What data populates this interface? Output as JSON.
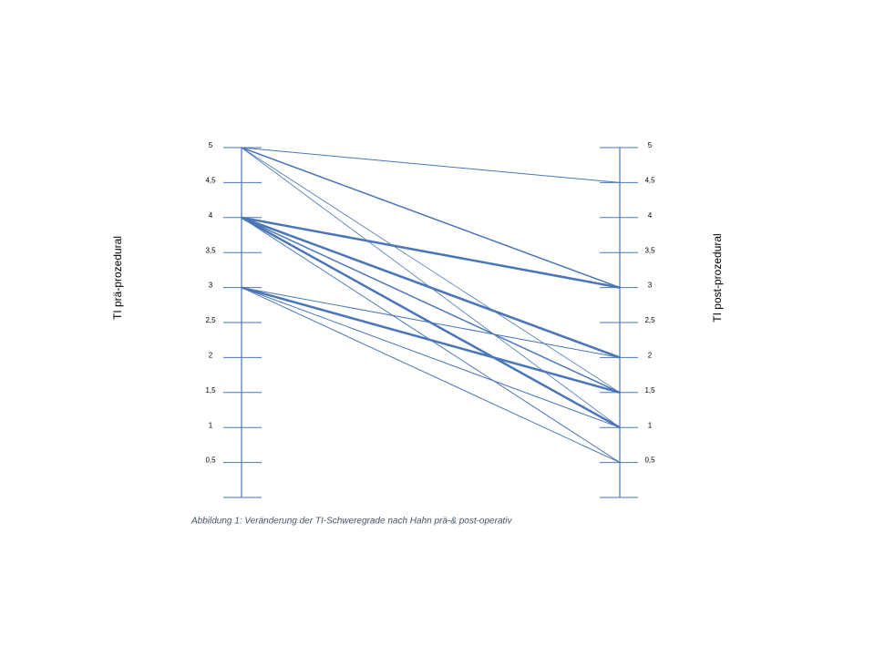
{
  "chart_data": {
    "type": "slope",
    "caption": "Abbildung 1: Veränderung der TI-Schweregrade nach Hahn prä-& post-operativ",
    "left_label": "TI prä-prozedural",
    "right_label": "TI post-prozedural",
    "color": "#4a76b8",
    "ylim": [
      0,
      5
    ],
    "yticks": [
      {
        "value": 0.5,
        "label": "0,5"
      },
      1,
      {
        "value": 1.5,
        "label": "1,5"
      },
      2,
      {
        "value": 2.5,
        "label": "2,5"
      },
      3,
      {
        "value": 3.5,
        "label": "3,5"
      },
      4,
      {
        "value": 4.5,
        "label": "4,5"
      },
      5
    ],
    "series": [
      {
        "values": [
          5,
          4.5
        ],
        "width": 1
      },
      {
        "values": [
          5,
          3
        ],
        "width": 1.5
      },
      {
        "values": [
          5,
          1.5
        ],
        "width": 0.8
      },
      {
        "values": [
          5,
          1
        ],
        "width": 0.8
      },
      {
        "values": [
          4,
          3
        ],
        "width": 2.5
      },
      {
        "values": [
          4,
          2
        ],
        "width": 2.5
      },
      {
        "values": [
          4,
          1.5
        ],
        "width": 1.5
      },
      {
        "values": [
          4,
          1
        ],
        "width": 2.5
      },
      {
        "values": [
          4,
          0.5
        ],
        "width": 1
      },
      {
        "values": [
          3,
          2
        ],
        "width": 1
      },
      {
        "values": [
          3,
          1.5
        ],
        "width": 2.5
      },
      {
        "values": [
          3,
          1
        ],
        "width": 1
      },
      {
        "values": [
          3,
          0.5
        ],
        "width": 1
      }
    ]
  }
}
